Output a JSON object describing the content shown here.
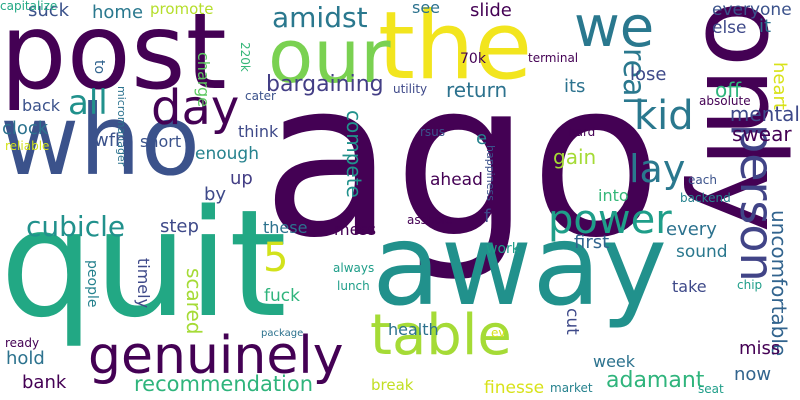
{
  "words": [
    {
      "text": "ago",
      "color": "#440154",
      "vertical": false
    },
    {
      "text": "quit",
      "color": "#22a884",
      "vertical": false
    },
    {
      "text": "only",
      "color": "#440154",
      "vertical": true
    },
    {
      "text": "away",
      "color": "#21918c",
      "vertical": false
    },
    {
      "text": "post",
      "color": "#440154",
      "vertical": false
    },
    {
      "text": "who",
      "color": "#3b528b",
      "vertical": false
    },
    {
      "text": "the",
      "color": "#f2e51e",
      "vertical": false
    },
    {
      "text": "our",
      "color": "#7ad151",
      "vertical": false
    },
    {
      "text": "genuinely",
      "color": "#440154",
      "vertical": false
    },
    {
      "text": "table",
      "color": "#a5db36",
      "vertical": false
    },
    {
      "text": "we",
      "color": "#2a788e",
      "vertical": false
    },
    {
      "text": "day",
      "color": "#440154",
      "vertical": false
    },
    {
      "text": "person",
      "color": "#414487",
      "vertical": true
    },
    {
      "text": "power",
      "color": "#1f9e89",
      "vertical": false
    },
    {
      "text": "kid",
      "color": "#2a788e",
      "vertical": false
    },
    {
      "text": "5",
      "color": "#d2e21b",
      "vertical": false
    },
    {
      "text": "lay",
      "color": "#2a788e",
      "vertical": false
    },
    {
      "text": "all",
      "color": "#21918c",
      "vertical": false
    },
    {
      "text": "real",
      "color": "#2a788e",
      "vertical": true
    },
    {
      "text": "amidst",
      "color": "#2a788e",
      "vertical": false
    },
    {
      "text": "cubicle",
      "color": "#21918c",
      "vertical": false
    },
    {
      "text": "bargaining",
      "color": "#433e85",
      "vertical": false
    },
    {
      "text": "recommendation",
      "color": "#2fb47c",
      "vertical": false
    },
    {
      "text": "adamant",
      "color": "#2fb47c",
      "vertical": false
    },
    {
      "text": "compete",
      "color": "#21918c",
      "vertical": true
    },
    {
      "text": "uncomfortable",
      "color": "#32648e",
      "vertical": true
    },
    {
      "text": "return",
      "color": "#2c728e",
      "vertical": false
    },
    {
      "text": "swear",
      "color": "#440154",
      "vertical": false
    },
    {
      "text": "mental",
      "color": "#3e4989",
      "vertical": false
    },
    {
      "text": "heart",
      "color": "#d8e219",
      "vertical": true
    },
    {
      "text": "off",
      "color": "#2fb47c",
      "vertical": false
    },
    {
      "text": "its",
      "color": "#2c728e",
      "vertical": false
    },
    {
      "text": "lose",
      "color": "#3e4989",
      "vertical": false
    },
    {
      "text": "everyone",
      "color": "#3b528b",
      "vertical": false
    },
    {
      "text": "else",
      "color": "#3e4989",
      "vertical": false
    },
    {
      "text": "it",
      "color": "#2c728e",
      "vertical": false
    },
    {
      "text": "suck",
      "color": "#3b528b",
      "vertical": false
    },
    {
      "text": "home",
      "color": "#2a788e",
      "vertical": false
    },
    {
      "text": "promote",
      "color": "#b5de2b",
      "vertical": false
    },
    {
      "text": "to",
      "color": "#32648e",
      "vertical": true
    },
    {
      "text": "charge",
      "color": "#5ec962",
      "vertical": true
    },
    {
      "text": "220k",
      "color": "#35b779",
      "vertical": true
    },
    {
      "text": "see",
      "color": "#2c728e",
      "vertical": false
    },
    {
      "text": "slide",
      "color": "#440154",
      "vertical": false
    },
    {
      "text": "70k",
      "color": "#440154",
      "vertical": false
    },
    {
      "text": "terminal",
      "color": "#440154",
      "vertical": false
    },
    {
      "text": "utility",
      "color": "#3e4989",
      "vertical": false
    },
    {
      "text": "micromanager",
      "color": "#2c728e",
      "vertical": true
    },
    {
      "text": "cater",
      "color": "#3b528b",
      "vertical": false
    },
    {
      "text": "absolute",
      "color": "#440154",
      "vertical": false
    },
    {
      "text": "back",
      "color": "#3b528b",
      "vertical": false
    },
    {
      "text": "clock",
      "color": "#2c728e",
      "vertical": false
    },
    {
      "text": "wfh",
      "color": "#3b528b",
      "vertical": false
    },
    {
      "text": "think",
      "color": "#3e4989",
      "vertical": false
    },
    {
      "text": "short",
      "color": "#3b528b",
      "vertical": false
    },
    {
      "text": "rsus",
      "color": "#3b528b",
      "vertical": false
    },
    {
      "text": "e",
      "color": "#26828e",
      "vertical": false
    },
    {
      "text": "hard",
      "color": "#440154",
      "vertical": false
    },
    {
      "text": "happiness",
      "color": "#3b528b",
      "vertical": true
    },
    {
      "text": "reliable",
      "color": "#d2e21b",
      "vertical": false
    },
    {
      "text": "enough",
      "color": "#26828e",
      "vertical": false
    },
    {
      "text": "gain",
      "color": "#a5db36",
      "vertical": false
    },
    {
      "text": "up",
      "color": "#433e85",
      "vertical": false
    },
    {
      "text": "ahead",
      "color": "#440154",
      "vertical": false
    },
    {
      "text": "by",
      "color": "#3e4989",
      "vertical": false
    },
    {
      "text": "into",
      "color": "#35b779",
      "vertical": false
    },
    {
      "text": "each",
      "color": "#3b528b",
      "vertical": false
    },
    {
      "text": "backend",
      "color": "#26828e",
      "vertical": false
    },
    {
      "text": "step",
      "color": "#3e4989",
      "vertical": false
    },
    {
      "text": "these",
      "color": "#2c728e",
      "vertical": false
    },
    {
      "text": "mess",
      "color": "#440154",
      "vertical": false
    },
    {
      "text": "f",
      "color": "#3e4989",
      "vertical": false
    },
    {
      "text": "asshole",
      "color": "#440154",
      "vertical": false
    },
    {
      "text": "first",
      "color": "#32648e",
      "vertical": false
    },
    {
      "text": "every",
      "color": "#2c728e",
      "vertical": false
    },
    {
      "text": "sound",
      "color": "#2a788e",
      "vertical": false
    },
    {
      "text": "work",
      "color": "#1f9e89",
      "vertical": false
    },
    {
      "text": "people",
      "color": "#26828e",
      "vertical": true
    },
    {
      "text": "timely",
      "color": "#3e4989",
      "vertical": true
    },
    {
      "text": "always",
      "color": "#1f9e89",
      "vertical": false
    },
    {
      "text": "lunch",
      "color": "#1f9e89",
      "vertical": false
    },
    {
      "text": "scared",
      "color": "#a5db36",
      "vertical": true
    },
    {
      "text": "fuck",
      "color": "#2fb47c",
      "vertical": false
    },
    {
      "text": "take",
      "color": "#3e4989",
      "vertical": false
    },
    {
      "text": "chip",
      "color": "#1f9e89",
      "vertical": false
    },
    {
      "text": "cut",
      "color": "#3e4989",
      "vertical": true
    },
    {
      "text": "health",
      "color": "#2c728e",
      "vertical": false
    },
    {
      "text": "ready",
      "color": "#440154",
      "vertical": false
    },
    {
      "text": "package",
      "color": "#2c728e",
      "vertical": false
    },
    {
      "text": "ev",
      "color": "#d8e219",
      "vertical": false
    },
    {
      "text": "hold",
      "color": "#2c728e",
      "vertical": false
    },
    {
      "text": "miss",
      "color": "#440154",
      "vertical": false
    },
    {
      "text": "now",
      "color": "#32648e",
      "vertical": false
    },
    {
      "text": "bank",
      "color": "#440154",
      "vertical": false
    },
    {
      "text": "week",
      "color": "#2c728e",
      "vertical": false
    },
    {
      "text": "break",
      "color": "#c2df23",
      "vertical": false
    },
    {
      "text": "finesse",
      "color": "#d8e219",
      "vertical": false
    },
    {
      "text": "market",
      "color": "#26828e",
      "vertical": false
    },
    {
      "text": "seat",
      "color": "#1f9e89",
      "vertical": false
    },
    {
      "text": "capitalize",
      "color": "#22a884",
      "vertical": false
    }
  ]
}
